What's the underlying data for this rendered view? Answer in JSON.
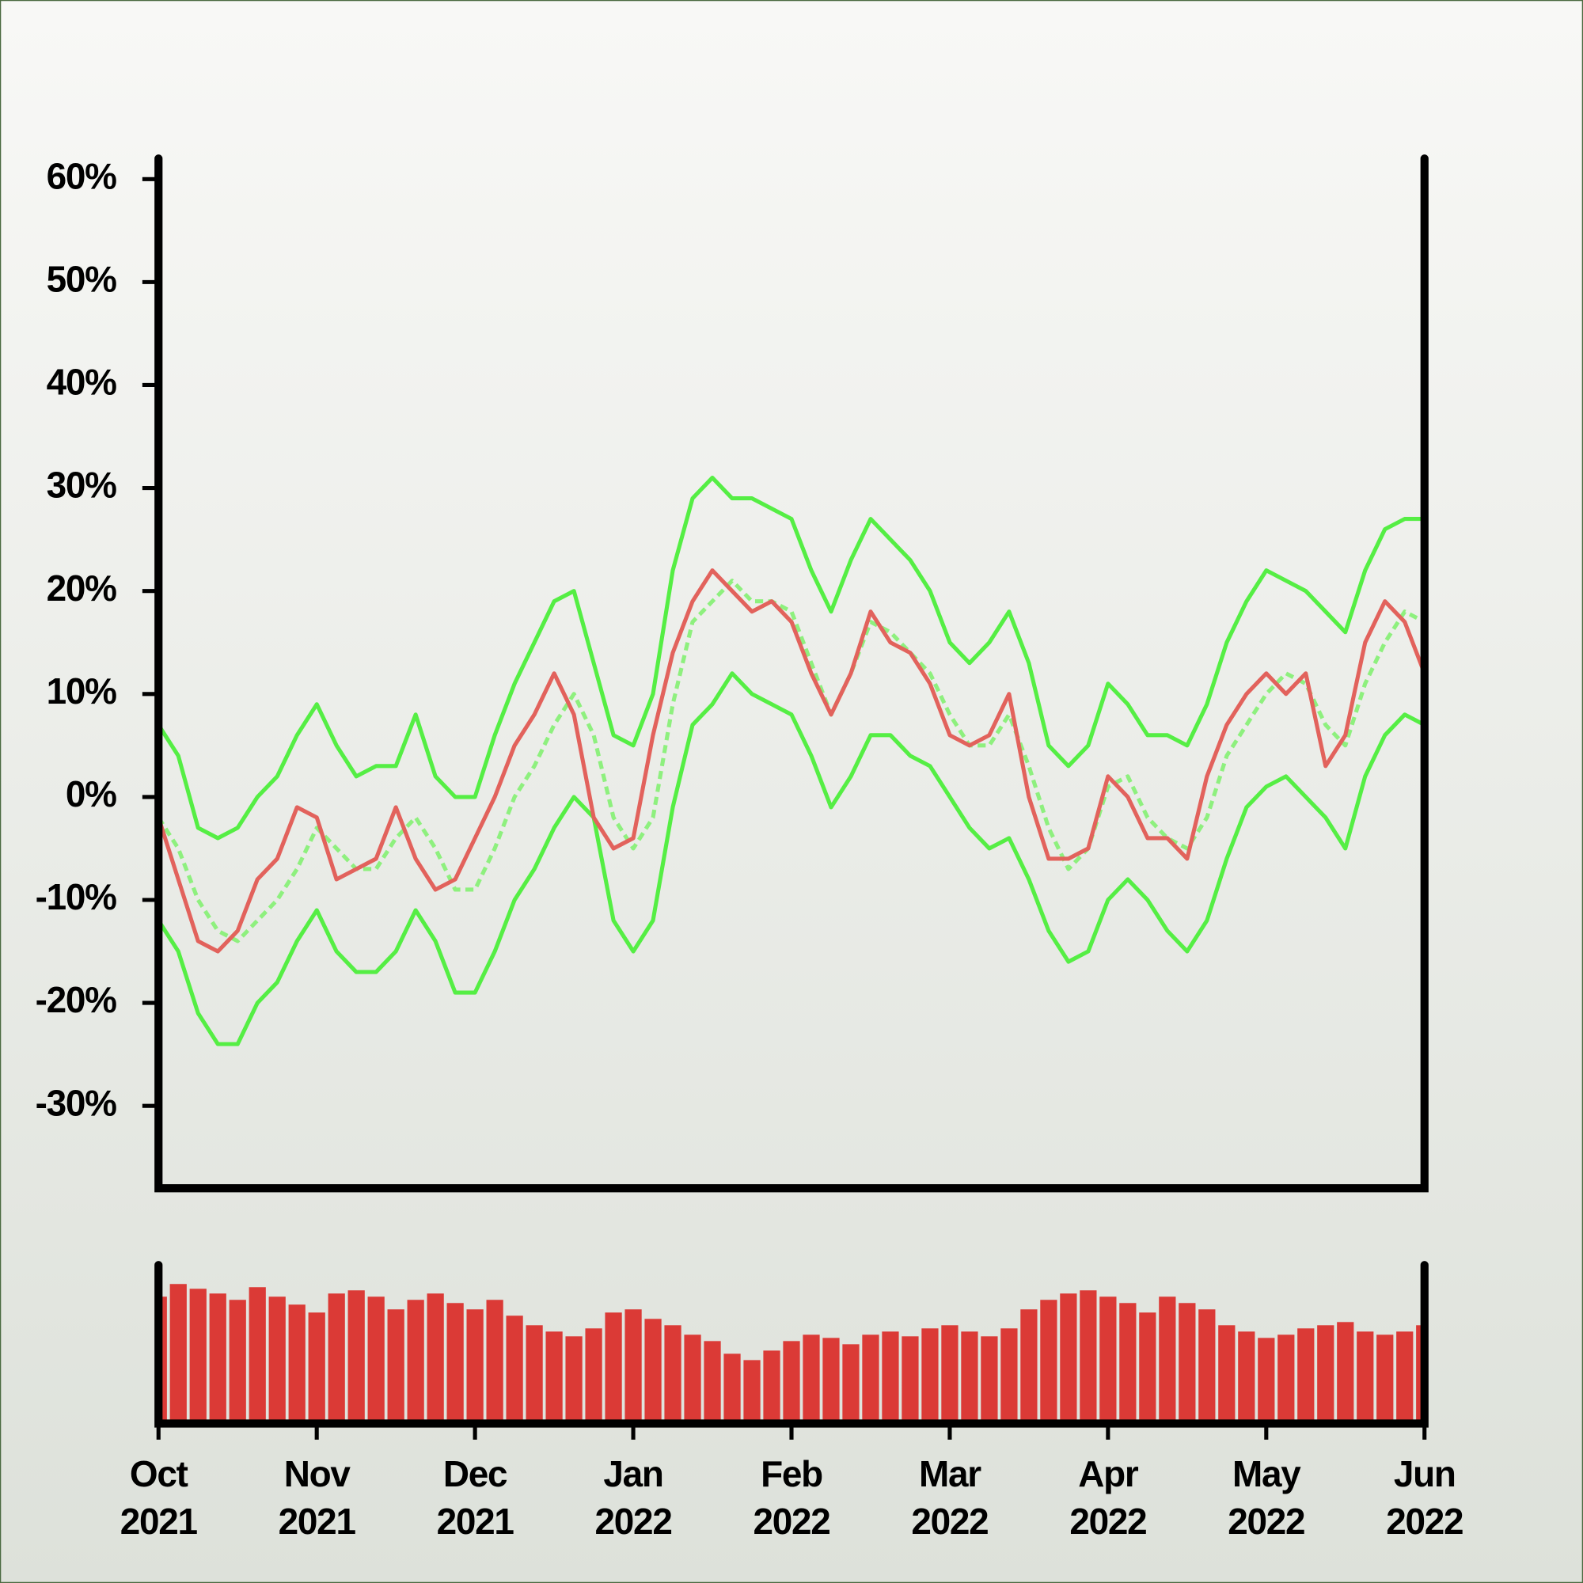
{
  "chart_data": [
    {
      "type": "line",
      "x": [
        0,
        0.125,
        0.25,
        0.375,
        0.5,
        0.625,
        0.75,
        0.875,
        1,
        1.125,
        1.25,
        1.375,
        1.5,
        1.625,
        1.75,
        1.875,
        2,
        2.125,
        2.25,
        2.375,
        2.5,
        2.625,
        2.75,
        2.875,
        3,
        3.125,
        3.25,
        3.375,
        3.5,
        3.625,
        3.75,
        3.875,
        4,
        4.125,
        4.25,
        4.375,
        4.5,
        4.625,
        4.75,
        4.875,
        5,
        5.125,
        5.25,
        5.375,
        5.5,
        5.625,
        5.75,
        5.875,
        6,
        6.125,
        6.25,
        6.375,
        6.5,
        6.625,
        6.75,
        6.875,
        7,
        7.125,
        7.25,
        7.375,
        7.5,
        7.625,
        7.75,
        7.875,
        8
      ],
      "series": [
        {
          "color": "#e2625c",
          "values": [
            -2,
            -8,
            -14,
            -15,
            -13,
            -8,
            -6,
            -1,
            -2,
            -8,
            -7,
            -6,
            -1,
            -6,
            -9,
            -8,
            -4,
            0,
            5,
            8,
            12,
            8,
            -2,
            -5,
            -4,
            6,
            14,
            19,
            22,
            20,
            18,
            19,
            17,
            12,
            8,
            12,
            18,
            15,
            14,
            11,
            6,
            5,
            6,
            10,
            0,
            -6,
            -6,
            -5,
            2,
            0,
            -4,
            -4,
            -6,
            2,
            7,
            10,
            12,
            10,
            12,
            3,
            6,
            15,
            19,
            17,
            12
          ]
        },
        {
          "color": "#8ef07e",
          "dashed": true,
          "values": [
            -2,
            -5,
            -10,
            -13,
            -14,
            -12,
            -10,
            -7,
            -3,
            -5,
            -7,
            -7,
            -4,
            -2,
            -5,
            -9,
            -9,
            -5,
            0,
            3,
            7,
            10,
            6,
            -2,
            -5,
            -2,
            9,
            17,
            19,
            21,
            19,
            19,
            18,
            13,
            8,
            12,
            17,
            16,
            14,
            12,
            8,
            5,
            5,
            8,
            3,
            -3,
            -7,
            -5,
            1,
            2,
            -2,
            -4,
            -5,
            -2,
            4,
            7,
            10,
            12,
            11,
            7,
            5,
            11,
            15,
            18,
            17
          ]
        },
        {
          "color": "#55ee44",
          "values": [
            7,
            4,
            -3,
            -4,
            -3,
            0,
            2,
            6,
            9,
            5,
            2,
            3,
            3,
            8,
            2,
            0,
            0,
            6,
            11,
            15,
            19,
            20,
            13,
            6,
            5,
            10,
            22,
            29,
            31,
            29,
            29,
            28,
            27,
            22,
            18,
            23,
            27,
            25,
            23,
            20,
            15,
            13,
            15,
            18,
            13,
            5,
            3,
            5,
            11,
            9,
            6,
            6,
            5,
            9,
            15,
            19,
            22,
            21,
            20,
            18,
            16,
            22,
            26,
            27,
            27
          ]
        },
        {
          "color": "#55ee44",
          "values": [
            -12,
            -15,
            -21,
            -24,
            -24,
            -20,
            -18,
            -14,
            -11,
            -15,
            -17,
            -17,
            -15,
            -11,
            -14,
            -19,
            -19,
            -15,
            -10,
            -7,
            -3,
            0,
            -2,
            -12,
            -15,
            -12,
            -1,
            7,
            9,
            12,
            10,
            9,
            8,
            4,
            -1,
            2,
            6,
            6,
            4,
            3,
            0,
            -3,
            -5,
            -4,
            -8,
            -13,
            -16,
            -15,
            -10,
            -8,
            -10,
            -13,
            -15,
            -12,
            -6,
            -1,
            1,
            2,
            0,
            -2,
            -5,
            2,
            6,
            8,
            7
          ]
        }
      ],
      "xlim": [
        0,
        8
      ],
      "ylim": [
        -38,
        62
      ],
      "yticks": [
        {
          "value": -30,
          "label": "-30%"
        },
        {
          "value": -20,
          "label": "-20%"
        },
        {
          "value": -10,
          "label": "-10%"
        },
        {
          "value": 0,
          "label": "0%"
        },
        {
          "value": 10,
          "label": "10%"
        },
        {
          "value": 20,
          "label": "20%"
        },
        {
          "value": 30,
          "label": "30%"
        },
        {
          "value": 40,
          "label": "40%"
        },
        {
          "value": 50,
          "label": "50%"
        },
        {
          "value": 60,
          "label": "60%"
        }
      ]
    },
    {
      "type": "bar",
      "x": [
        0,
        0.125,
        0.25,
        0.375,
        0.5,
        0.625,
        0.75,
        0.875,
        1,
        1.125,
        1.25,
        1.375,
        1.5,
        1.625,
        1.75,
        1.875,
        2,
        2.125,
        2.25,
        2.375,
        2.5,
        2.625,
        2.75,
        2.875,
        3,
        3.125,
        3.25,
        3.375,
        3.5,
        3.625,
        3.75,
        3.875,
        4,
        4.125,
        4.25,
        4.375,
        4.5,
        4.625,
        4.75,
        4.875,
        5,
        5.125,
        5.25,
        5.375,
        5.5,
        5.625,
        5.75,
        5.875,
        6,
        6.125,
        6.25,
        6.375,
        6.5,
        6.625,
        6.75,
        6.875,
        7,
        7.125,
        7.25,
        7.375,
        7.5,
        7.625,
        7.75,
        7.875,
        8
      ],
      "values": [
        80,
        88,
        85,
        82,
        78,
        86,
        80,
        75,
        70,
        82,
        84,
        80,
        72,
        78,
        82,
        76,
        72,
        78,
        68,
        62,
        58,
        55,
        60,
        70,
        72,
        66,
        62,
        56,
        52,
        44,
        40,
        46,
        52,
        56,
        54,
        50,
        56,
        58,
        55,
        60,
        62,
        58,
        55,
        60,
        72,
        78,
        82,
        84,
        80,
        76,
        70,
        80,
        76,
        72,
        62,
        58,
        54,
        56,
        60,
        62,
        64,
        58,
        56,
        58,
        62
      ],
      "color": "#db3a36",
      "xlim": [
        0,
        8
      ],
      "ylim": [
        0,
        100
      ],
      "xticks": [
        {
          "value": 0,
          "label": [
            "Oct",
            "2021"
          ]
        },
        {
          "value": 1,
          "label": [
            "Nov",
            "2021"
          ]
        },
        {
          "value": 2,
          "label": [
            "Dec",
            "2021"
          ]
        },
        {
          "value": 3,
          "label": [
            "Jan",
            "2022"
          ]
        },
        {
          "value": 4,
          "label": [
            "Feb",
            "2022"
          ]
        },
        {
          "value": 5,
          "label": [
            "Mar",
            "2022"
          ]
        },
        {
          "value": 6,
          "label": [
            "Apr",
            "2022"
          ]
        },
        {
          "value": 7,
          "label": [
            "May",
            "2022"
          ]
        },
        {
          "value": 8,
          "label": [
            "Jun",
            "2022"
          ]
        }
      ]
    }
  ]
}
